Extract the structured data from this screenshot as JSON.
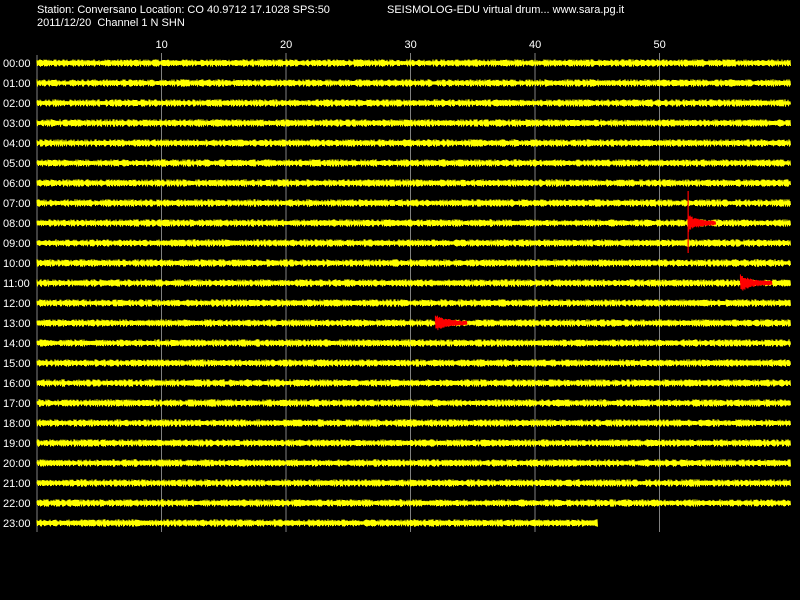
{
  "header": {
    "station_line": "Station: Conversano Location: CO 40.9712 17.1028 SPS:50",
    "date_line": "2011/12/20  Channel 1 N SHN",
    "title": "SEISMOLOG-EDU virtual drum... www.sara.pg.it"
  },
  "colors": {
    "background": "#000000",
    "trace": "#FFFF00",
    "event": "#FF0000",
    "grid": "#808080",
    "text": "#FFFFFF"
  },
  "minute_ticks": [
    "10",
    "20",
    "30",
    "40",
    "50"
  ],
  "hour_labels": [
    "00:00",
    "01:00",
    "02:00",
    "03:00",
    "04:00",
    "05:00",
    "06:00",
    "07:00",
    "08:00",
    "09:00",
    "10:00",
    "11:00",
    "12:00",
    "13:00",
    "14:00",
    "15:00",
    "16:00",
    "17:00",
    "18:00",
    "19:00",
    "20:00",
    "21:00",
    "22:00",
    "23:00"
  ],
  "record_end_minute_last_row": 45,
  "events": [
    {
      "hour_row": "08:00",
      "start_minute": 52.3,
      "end_minute": 54.5,
      "type": "spike"
    },
    {
      "hour_row": "11:00",
      "start_minute": 56.5,
      "end_minute": 59.0,
      "type": "burst"
    },
    {
      "hour_row": "13:00",
      "start_minute": 32.0,
      "end_minute": 34.5,
      "type": "burst"
    }
  ]
}
